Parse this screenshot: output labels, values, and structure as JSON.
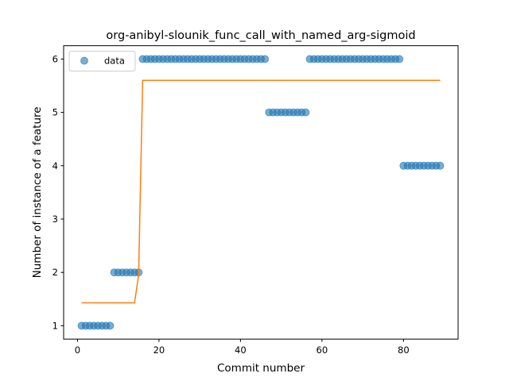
{
  "chart_data": {
    "type": "scatter",
    "title": "org-anibyl-slounik_func_call_with_named_arg-sigmoid",
    "xlabel": "Commit number",
    "ylabel": "Number of instance of a feature",
    "xlim": [
      -3.4,
      93.4
    ],
    "ylim": [
      0.75,
      6.25
    ],
    "xticks": [
      0,
      20,
      40,
      60,
      80
    ],
    "yticks": [
      1,
      2,
      3,
      4,
      5,
      6
    ],
    "grid": false,
    "legend": {
      "position": "top-left",
      "entries": [
        "data"
      ]
    },
    "colors": {
      "data": "#1f77b4",
      "fit": "#ff7f0e"
    },
    "series": [
      {
        "name": "data",
        "kind": "scatter",
        "points": [
          [
            1,
            1
          ],
          [
            2,
            1
          ],
          [
            3,
            1
          ],
          [
            4,
            1
          ],
          [
            5,
            1
          ],
          [
            6,
            1
          ],
          [
            7,
            1
          ],
          [
            8,
            1
          ],
          [
            9,
            2
          ],
          [
            10,
            2
          ],
          [
            11,
            2
          ],
          [
            12,
            2
          ],
          [
            13,
            2
          ],
          [
            14,
            2
          ],
          [
            15,
            2
          ],
          [
            16,
            6
          ],
          [
            17,
            6
          ],
          [
            18,
            6
          ],
          [
            19,
            6
          ],
          [
            20,
            6
          ],
          [
            21,
            6
          ],
          [
            22,
            6
          ],
          [
            23,
            6
          ],
          [
            24,
            6
          ],
          [
            25,
            6
          ],
          [
            26,
            6
          ],
          [
            27,
            6
          ],
          [
            28,
            6
          ],
          [
            29,
            6
          ],
          [
            30,
            6
          ],
          [
            31,
            6
          ],
          [
            32,
            6
          ],
          [
            33,
            6
          ],
          [
            34,
            6
          ],
          [
            35,
            6
          ],
          [
            36,
            6
          ],
          [
            37,
            6
          ],
          [
            38,
            6
          ],
          [
            39,
            6
          ],
          [
            40,
            6
          ],
          [
            41,
            6
          ],
          [
            42,
            6
          ],
          [
            43,
            6
          ],
          [
            44,
            6
          ],
          [
            45,
            6
          ],
          [
            46,
            6
          ],
          [
            47,
            5
          ],
          [
            48,
            5
          ],
          [
            49,
            5
          ],
          [
            50,
            5
          ],
          [
            51,
            5
          ],
          [
            52,
            5
          ],
          [
            53,
            5
          ],
          [
            54,
            5
          ],
          [
            55,
            5
          ],
          [
            56,
            5
          ],
          [
            57,
            6
          ],
          [
            58,
            6
          ],
          [
            59,
            6
          ],
          [
            60,
            6
          ],
          [
            61,
            6
          ],
          [
            62,
            6
          ],
          [
            63,
            6
          ],
          [
            64,
            6
          ],
          [
            65,
            6
          ],
          [
            66,
            6
          ],
          [
            67,
            6
          ],
          [
            68,
            6
          ],
          [
            69,
            6
          ],
          [
            70,
            6
          ],
          [
            71,
            6
          ],
          [
            72,
            6
          ],
          [
            73,
            6
          ],
          [
            74,
            6
          ],
          [
            75,
            6
          ],
          [
            76,
            6
          ],
          [
            77,
            6
          ],
          [
            78,
            6
          ],
          [
            79,
            6
          ],
          [
            80,
            4
          ],
          [
            81,
            4
          ],
          [
            82,
            4
          ],
          [
            83,
            4
          ],
          [
            84,
            4
          ],
          [
            85,
            4
          ],
          [
            86,
            4
          ],
          [
            87,
            4
          ],
          [
            88,
            4
          ],
          [
            89,
            4
          ]
        ]
      },
      {
        "kind": "line",
        "points": [
          [
            1,
            1.43
          ],
          [
            14,
            1.43
          ],
          [
            15,
            1.95
          ],
          [
            16,
            5.6
          ],
          [
            89,
            5.6
          ]
        ]
      }
    ]
  }
}
